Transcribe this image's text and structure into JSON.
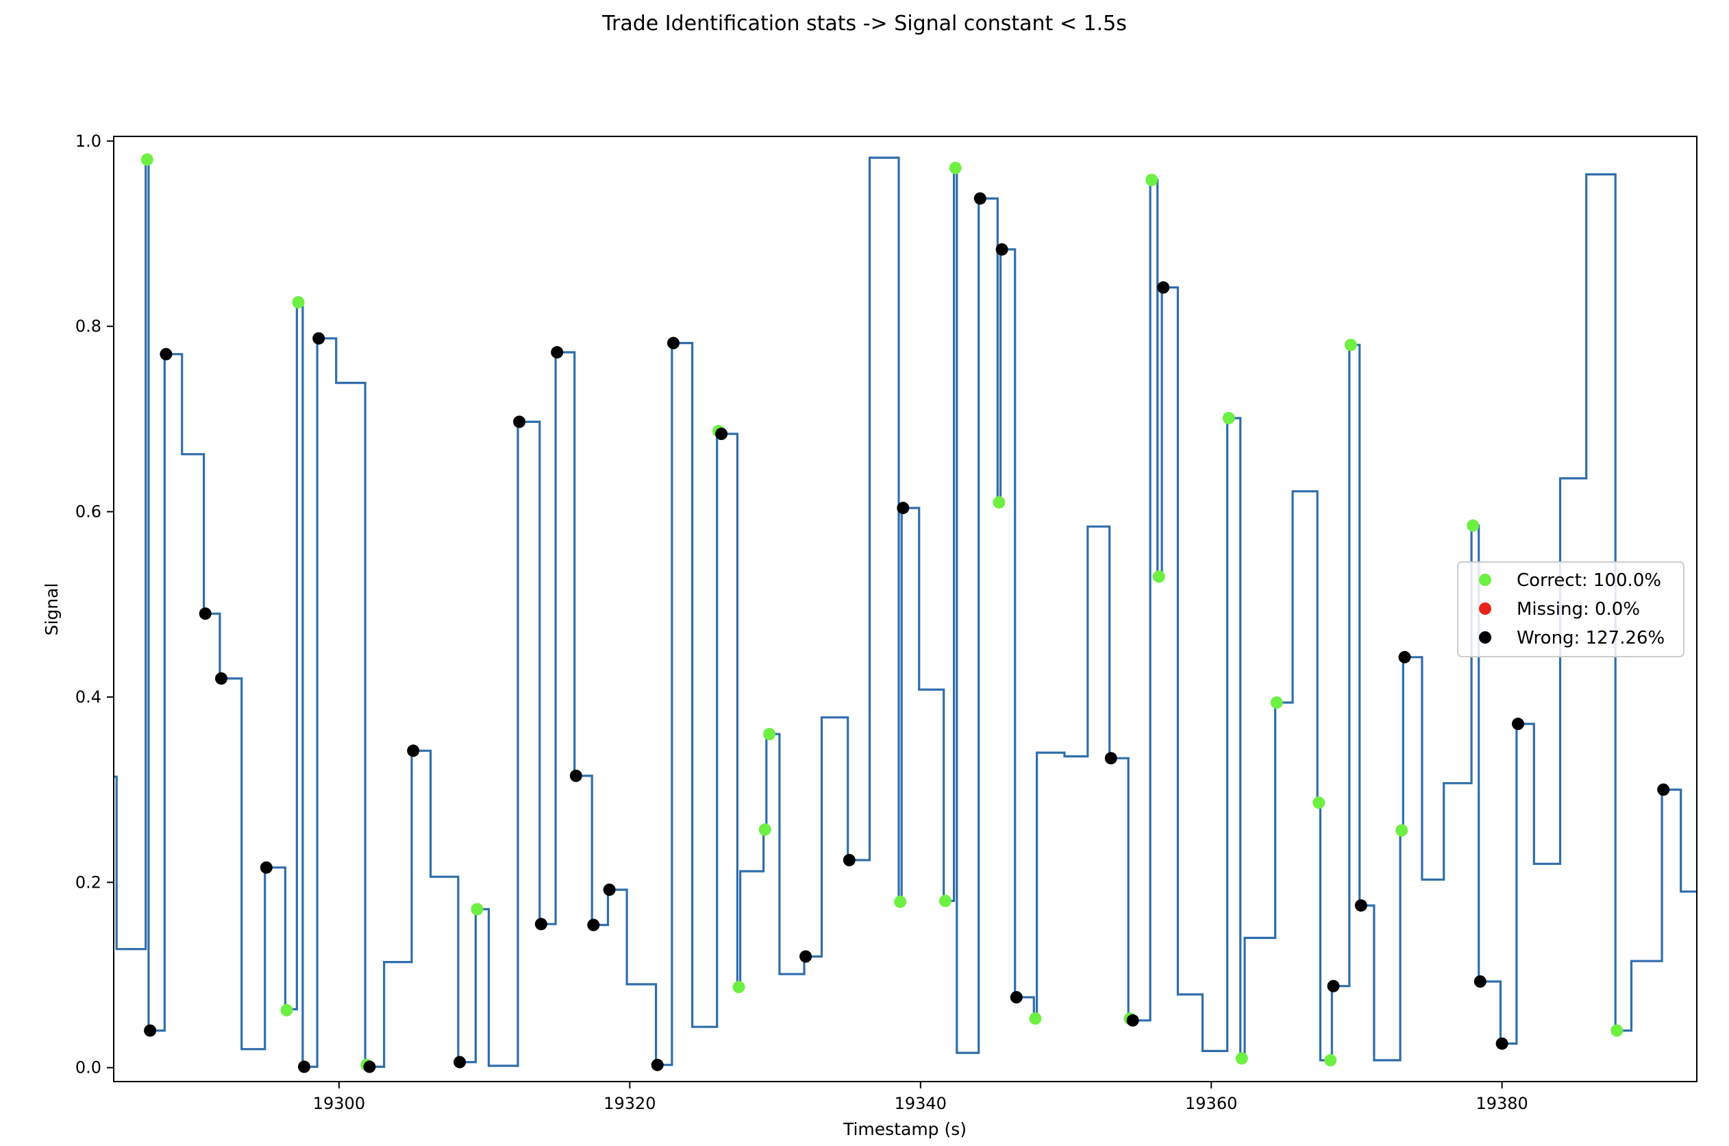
{
  "chart_data": {
    "type": "line",
    "title": "Trade Identification stats -> Signal constant < 1.5s",
    "xlabel": "Timestamp (s)",
    "ylabel": "Signal",
    "xlim": [
      19284.5,
      19393.4
    ],
    "ylim": [
      -0.015,
      1.005
    ],
    "xticks": [
      19300,
      19320,
      19340,
      19360,
      19380
    ],
    "yticks": [
      0.0,
      0.2,
      0.4,
      0.6,
      0.8,
      1.0
    ],
    "xtick_labels": [
      "19300",
      "19320",
      "19340",
      "19360",
      "19380"
    ],
    "ytick_labels": [
      "0.0",
      "0.2",
      "0.4",
      "0.6",
      "0.8",
      "1.0"
    ],
    "grid": false,
    "legend_position": "center-right",
    "colors": {
      "signal": "#2f6eab",
      "correct": "#6ef043",
      "missing": "#e8251a",
      "wrong": "#000000"
    },
    "series": [
      {
        "type": "step",
        "values": [
          [
            19284.5,
            0.314
          ],
          [
            19284.7,
            0.128
          ],
          [
            19286.7,
            0.98
          ],
          [
            19286.9,
            0.04
          ],
          [
            19288.0,
            0.77
          ],
          [
            19289.2,
            0.662
          ],
          [
            19290.7,
            0.49
          ],
          [
            19291.8,
            0.42
          ],
          [
            19293.3,
            0.02
          ],
          [
            19294.9,
            0.216
          ],
          [
            19296.3,
            0.063
          ],
          [
            19297.1,
            0.826
          ],
          [
            19297.5,
            0.001
          ],
          [
            19298.5,
            0.787
          ],
          [
            19299.8,
            0.739
          ],
          [
            19301.8,
            0.003
          ],
          [
            19302.0,
            0.001
          ],
          [
            19303.1,
            0.114
          ],
          [
            19305.0,
            0.342
          ],
          [
            19306.3,
            0.206
          ],
          [
            19308.2,
            0.006
          ],
          [
            19309.4,
            0.171
          ],
          [
            19310.3,
            0.002
          ],
          [
            19312.3,
            0.697
          ],
          [
            19313.8,
            0.155
          ],
          [
            19314.9,
            0.772
          ],
          [
            19316.2,
            0.315
          ],
          [
            19317.4,
            0.154
          ],
          [
            19318.5,
            0.192
          ],
          [
            19319.8,
            0.09
          ],
          [
            19321.8,
            0.003
          ],
          [
            19322.9,
            0.782
          ],
          [
            19324.3,
            0.044
          ],
          [
            19326.0,
            0.687
          ],
          [
            19326.2,
            0.684
          ],
          [
            19327.4,
            0.087
          ],
          [
            19327.6,
            0.212
          ],
          [
            19329.2,
            0.257
          ],
          [
            19329.4,
            0.36
          ],
          [
            19330.3,
            0.101
          ],
          [
            19332.0,
            0.12
          ],
          [
            19333.2,
            0.378
          ],
          [
            19335.0,
            0.224
          ],
          [
            19336.5,
            0.982
          ],
          [
            19338.5,
            0.179
          ],
          [
            19338.7,
            0.604
          ],
          [
            19339.9,
            0.408
          ],
          [
            19341.6,
            0.18
          ],
          [
            19342.3,
            0.971
          ],
          [
            19342.5,
            0.016
          ],
          [
            19344.0,
            0.938
          ],
          [
            19345.3,
            0.61
          ],
          [
            19345.5,
            0.883
          ],
          [
            19346.5,
            0.076
          ],
          [
            19347.8,
            0.053
          ],
          [
            19348.0,
            0.34
          ],
          [
            19349.9,
            0.336
          ],
          [
            19351.5,
            0.584
          ],
          [
            19353.0,
            0.334
          ],
          [
            19354.3,
            0.053
          ],
          [
            19354.5,
            0.051
          ],
          [
            19355.8,
            0.958
          ],
          [
            19356.3,
            0.53
          ],
          [
            19356.6,
            0.842
          ],
          [
            19357.7,
            0.079
          ],
          [
            19359.4,
            0.018
          ],
          [
            19361.1,
            0.701
          ],
          [
            19362.0,
            0.01
          ],
          [
            19362.3,
            0.14
          ],
          [
            19364.4,
            0.394
          ],
          [
            19365.6,
            0.622
          ],
          [
            19367.3,
            0.286
          ],
          [
            19367.5,
            0.008
          ],
          [
            19368.3,
            0.088
          ],
          [
            19369.5,
            0.78
          ],
          [
            19370.2,
            0.175
          ],
          [
            19371.2,
            0.008
          ],
          [
            19373.0,
            0.256
          ],
          [
            19373.2,
            0.443
          ],
          [
            19374.5,
            0.203
          ],
          [
            19376.0,
            0.307
          ],
          [
            19377.9,
            0.585
          ],
          [
            19378.4,
            0.093
          ],
          [
            19379.9,
            0.026
          ],
          [
            19381.0,
            0.371
          ],
          [
            19382.2,
            0.22
          ],
          [
            19384.0,
            0.636
          ],
          [
            19385.8,
            0.964
          ],
          [
            19387.8,
            0.04
          ],
          [
            19388.9,
            0.115
          ],
          [
            19391.0,
            0.3
          ],
          [
            19392.3,
            0.19
          ],
          [
            19393.4,
            0.19
          ]
        ]
      },
      {
        "name": "Correct: 100.0%",
        "type": "scatter",
        "color": "#6ef043",
        "points": [
          [
            19286.8,
            0.98
          ],
          [
            19296.4,
            0.062
          ],
          [
            19297.2,
            0.826
          ],
          [
            19301.9,
            0.003
          ],
          [
            19309.5,
            0.171
          ],
          [
            19326.1,
            0.687
          ],
          [
            19327.5,
            0.087
          ],
          [
            19329.3,
            0.257
          ],
          [
            19329.6,
            0.36
          ],
          [
            19338.6,
            0.179
          ],
          [
            19341.7,
            0.18
          ],
          [
            19342.4,
            0.971
          ],
          [
            19345.4,
            0.61
          ],
          [
            19347.9,
            0.053
          ],
          [
            19354.4,
            0.053
          ],
          [
            19355.9,
            0.958
          ],
          [
            19356.4,
            0.53
          ],
          [
            19361.2,
            0.701
          ],
          [
            19362.1,
            0.01
          ],
          [
            19364.5,
            0.394
          ],
          [
            19367.4,
            0.286
          ],
          [
            19368.2,
            0.008
          ],
          [
            19369.6,
            0.78
          ],
          [
            19373.1,
            0.256
          ],
          [
            19378.0,
            0.585
          ],
          [
            19387.9,
            0.04
          ]
        ]
      },
      {
        "name": "Missing: 0.0%",
        "type": "scatter",
        "color": "#e8251a",
        "points": []
      },
      {
        "name": "Wrong: 127.26%",
        "type": "scatter",
        "color": "#000000",
        "points": [
          [
            19287.0,
            0.04
          ],
          [
            19288.1,
            0.77
          ],
          [
            19290.8,
            0.49
          ],
          [
            19291.9,
            0.42
          ],
          [
            19295.0,
            0.216
          ],
          [
            19297.6,
            0.001
          ],
          [
            19298.6,
            0.787
          ],
          [
            19302.1,
            0.001
          ],
          [
            19305.1,
            0.342
          ],
          [
            19308.3,
            0.006
          ],
          [
            19312.4,
            0.697
          ],
          [
            19313.9,
            0.155
          ],
          [
            19315.0,
            0.772
          ],
          [
            19316.3,
            0.315
          ],
          [
            19317.5,
            0.154
          ],
          [
            19318.6,
            0.192
          ],
          [
            19321.9,
            0.003
          ],
          [
            19323.0,
            0.782
          ],
          [
            19326.3,
            0.684
          ],
          [
            19332.1,
            0.12
          ],
          [
            19335.1,
            0.224
          ],
          [
            19338.8,
            0.604
          ],
          [
            19344.1,
            0.938
          ],
          [
            19345.6,
            0.883
          ],
          [
            19346.6,
            0.076
          ],
          [
            19353.1,
            0.334
          ],
          [
            19354.6,
            0.051
          ],
          [
            19356.7,
            0.842
          ],
          [
            19368.4,
            0.088
          ],
          [
            19370.3,
            0.175
          ],
          [
            19373.3,
            0.443
          ],
          [
            19378.5,
            0.093
          ],
          [
            19380.0,
            0.026
          ],
          [
            19381.1,
            0.371
          ],
          [
            19391.1,
            0.3
          ]
        ]
      }
    ]
  }
}
